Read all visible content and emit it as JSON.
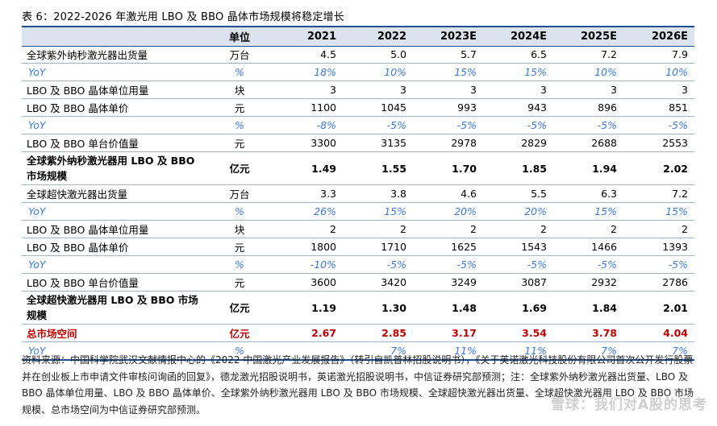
{
  "title": "表 6：2022-2026 年激光用 LBO 及 BBO 晶体市场规模将稳定增长",
  "header": [
    "",
    "单位",
    "2021",
    "2022",
    "2023E",
    "2024E",
    "2025E",
    "2026E"
  ],
  "rows": [
    {
      "label": "全球紫外纳秒激光器出货量",
      "unit": "万台",
      "values": [
        "4.5",
        "5.0",
        "5.7",
        "6.5",
        "7.2",
        "7.9"
      ],
      "style": "normal"
    },
    {
      "label": "YoY",
      "unit": "%",
      "values": [
        "18%",
        "10%",
        "15%",
        "15%",
        "10%",
        "10%"
      ],
      "style": "yoy"
    },
    {
      "label": "LBO 及 BBO 晶体单位用量",
      "unit": "块",
      "values": [
        "3",
        "3",
        "3",
        "3",
        "3",
        "3"
      ],
      "style": "normal"
    },
    {
      "label": "LBO 及 BBO 晶体单价",
      "unit": "元",
      "values": [
        "1100",
        "1045",
        "993",
        "943",
        "896",
        "851"
      ],
      "style": "normal"
    },
    {
      "label": "YoY",
      "unit": "%",
      "values": [
        "-8%",
        "-5%",
        "-5%",
        "-5%",
        "-5%",
        "-5%"
      ],
      "style": "yoy"
    },
    {
      "label": "LBO 及 BBO 单台价值量",
      "unit": "元",
      "values": [
        "3300",
        "3135",
        "2978",
        "2829",
        "2688",
        "2553"
      ],
      "style": "normal"
    },
    {
      "label": "全球紫外纳秒激光器用 LBO 及 BBO 市场规模",
      "unit": "亿元",
      "values": [
        "1.49",
        "1.55",
        "1.70",
        "1.85",
        "1.94",
        "2.02"
      ],
      "style": "bold"
    },
    {
      "label": "全球超快激光器出货量",
      "unit": "万台",
      "values": [
        "3.3",
        "3.8",
        "4.6",
        "5.5",
        "6.3",
        "7.2"
      ],
      "style": "normal"
    },
    {
      "label": "YoY",
      "unit": "%",
      "values": [
        "26%",
        "15%",
        "20%",
        "20%",
        "15%",
        "15%"
      ],
      "style": "yoy"
    },
    {
      "label": "LBO 及 BBO 晶体单位用量",
      "unit": "块",
      "values": [
        "2",
        "2",
        "2",
        "2",
        "2",
        "2"
      ],
      "style": "normal"
    },
    {
      "label": "LBO 及 BBO 晶体单价",
      "unit": "元",
      "values": [
        "1800",
        "1710",
        "1625",
        "1543",
        "1466",
        "1393"
      ],
      "style": "normal"
    },
    {
      "label": "YoY",
      "unit": "%",
      "values": [
        "-10%",
        "-5%",
        "-5%",
        "-5%",
        "-5%",
        "-5%"
      ],
      "style": "yoy"
    },
    {
      "label": "LBO 及 BBO 单台价值量",
      "unit": "元",
      "values": [
        "3600",
        "3420",
        "3249",
        "3087",
        "2932",
        "2786"
      ],
      "style": "normal"
    },
    {
      "label": "全球超快激光器用 LBO 及 BBO 市场规模",
      "unit": "亿元",
      "values": [
        "1.19",
        "1.30",
        "1.48",
        "1.69",
        "1.84",
        "2.01"
      ],
      "style": "bold"
    },
    {
      "label": "总市场空间",
      "unit": "亿元",
      "values": [
        "2.67",
        "2.85",
        "3.17",
        "3.54",
        "3.78",
        "4.04"
      ],
      "style": "total"
    },
    {
      "label": "YoY",
      "unit": "%",
      "values": [
        "",
        "7%",
        "11%",
        "11%",
        "7%",
        "7%"
      ],
      "style": "yoy last"
    }
  ],
  "source": "资料来源：中国科学院武汉文献情报中心的《2022 中国激光产业发展报告》（转引自凯普林招股说明书），《关于英诺激光科技股份有限公司首次公开发行股票并在创业板上市申请文件审核问询函的回复》，德龙激光招股说明书，英诺激光招股说明书，中信证券研究部预测；注：全球紫外纳秒激光器出货量、LBO 及 BBO 晶体单位用量、LBO 及 BBO 晶体单价、全球紫外纳秒激光器用 LBO 及 BBO 市场规模、全球超快激光器出货量、全球超快激光器用 LBO 及 BBO 市场规模、总市场空间为中信证券研究部预测。",
  "watermark": "雪球：我们对A股的思考",
  "colors": {
    "header_bg": "#dbe3ee",
    "rule": "#1a4f94",
    "yoy": "#3b78d8",
    "total": "#c00000"
  }
}
